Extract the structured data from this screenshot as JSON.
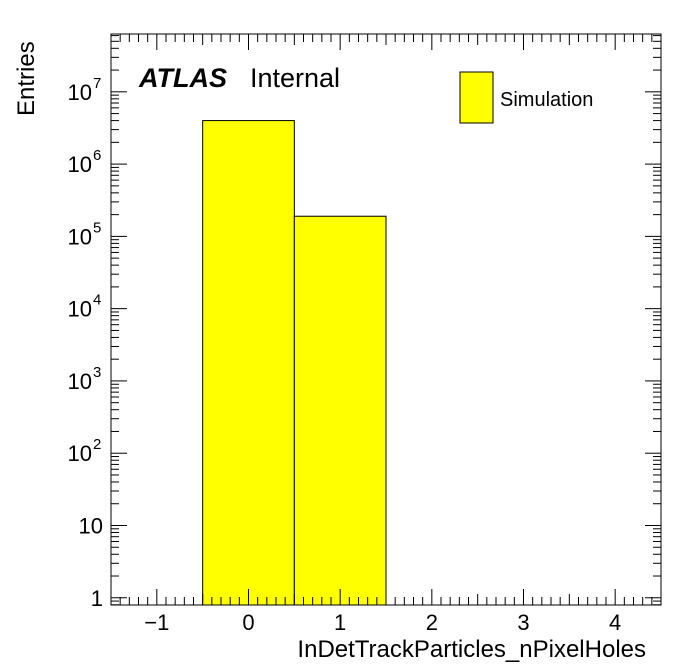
{
  "chart_data": {
    "type": "bar",
    "title": "",
    "xlabel": "InDetTrackParticles_nPixelHoles",
    "ylabel": "Entries",
    "xlim": [
      -1.5,
      4.5
    ],
    "ylim_log10": [
      -0.1,
      7.8
    ],
    "log_y": true,
    "bins": [
      {
        "low": -0.5,
        "high": 0.5,
        "value": 4000000
      },
      {
        "low": 0.5,
        "high": 1.5,
        "value": 190000
      }
    ],
    "series": [
      {
        "name": "Simulation",
        "color": "#ffff00"
      }
    ],
    "x_ticks": [
      "−1",
      "0",
      "1",
      "2",
      "3",
      "4"
    ],
    "y_ticks": [
      {
        "base": "1",
        "exp": ""
      },
      {
        "base": "10",
        "exp": ""
      },
      {
        "base": "10",
        "exp": "2"
      },
      {
        "base": "10",
        "exp": "3"
      },
      {
        "base": "10",
        "exp": "4"
      },
      {
        "base": "10",
        "exp": "5"
      },
      {
        "base": "10",
        "exp": "6"
      },
      {
        "base": "10",
        "exp": "7"
      }
    ],
    "legend_position": "top-right",
    "annotation": {
      "experiment": "ATLAS",
      "status": "Internal"
    }
  }
}
